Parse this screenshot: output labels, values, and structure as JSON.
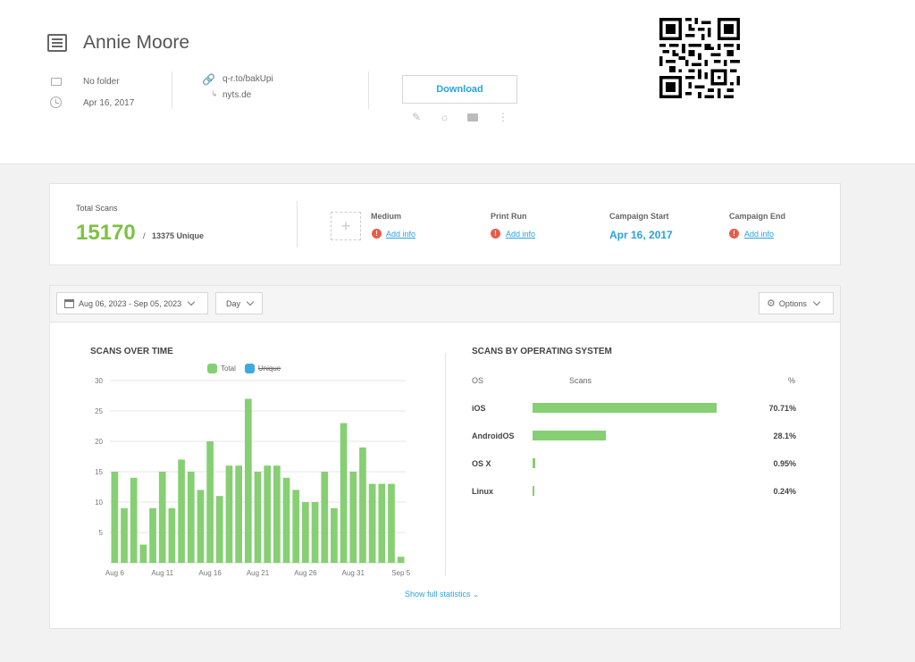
{
  "header": {
    "title": "Annie Moore",
    "folder": "No folder",
    "date": "Apr 16, 2017",
    "short_url": "q-r.to/bakUpi",
    "target": "nyts.de",
    "download_label": "Download"
  },
  "stats": {
    "total_label": "Total Scans",
    "total": "15170",
    "slash": "/",
    "unique": "13375 Unique",
    "medium_label": "Medium",
    "print_run_label": "Print Run",
    "campaign_start_label": "Campaign Start",
    "campaign_start": "Apr 16, 2017",
    "campaign_end_label": "Campaign End",
    "add_info": "Add info"
  },
  "toolbar": {
    "date_range": "Aug 06, 2023 - Sep 05, 2023",
    "interval": "Day",
    "options": "Options"
  },
  "scans_over_time": {
    "title": "SCANS OVER TIME",
    "legend_total": "Total",
    "legend_unique": "Unique"
  },
  "chart_data": {
    "type": "bar",
    "x": [
      "Aug 6",
      "Aug 7",
      "Aug 8",
      "Aug 9",
      "Aug 10",
      "Aug 11",
      "Aug 12",
      "Aug 13",
      "Aug 14",
      "Aug 15",
      "Aug 16",
      "Aug 17",
      "Aug 18",
      "Aug 19",
      "Aug 20",
      "Aug 21",
      "Aug 22",
      "Aug 23",
      "Aug 24",
      "Aug 25",
      "Aug 26",
      "Aug 27",
      "Aug 28",
      "Aug 29",
      "Aug 30",
      "Aug 31",
      "Sep 1",
      "Sep 2",
      "Sep 3",
      "Sep 4",
      "Sep 5"
    ],
    "series": [
      {
        "name": "Total",
        "values": [
          15,
          9,
          14,
          3,
          9,
          15,
          9,
          17,
          15,
          12,
          20,
          11,
          16,
          16,
          27,
          15,
          16,
          16,
          14,
          12,
          10,
          10,
          15,
          9,
          23,
          15,
          19,
          13,
          13,
          13,
          1
        ]
      }
    ],
    "tick_labels": [
      "Aug 6",
      "Aug 11",
      "Aug 16",
      "Aug 21",
      "Aug 26",
      "Aug 31",
      "Sep 5"
    ],
    "tick_indices": [
      0,
      5,
      10,
      15,
      20,
      25,
      30
    ],
    "yticks": [
      5,
      10,
      15,
      20,
      25,
      30
    ],
    "ylim": [
      0,
      30
    ],
    "grid": true,
    "colors": {
      "total": "#86cf73",
      "unique": "#3fa9e0"
    }
  },
  "os": {
    "title": "SCANS BY OPERATING SYSTEM",
    "col_os": "OS",
    "col_scans": "Scans",
    "col_pct": "%",
    "rows": [
      {
        "name": "iOS",
        "pct": "70.71%",
        "share": 0.7071
      },
      {
        "name": "AndroidOS",
        "pct": "28.1%",
        "share": 0.281
      },
      {
        "name": "OS X",
        "pct": "0.95%",
        "share": 0.0095
      },
      {
        "name": "Linux",
        "pct": "0.24%",
        "share": 0.0024
      }
    ]
  },
  "full_stats": "Show full statistics"
}
